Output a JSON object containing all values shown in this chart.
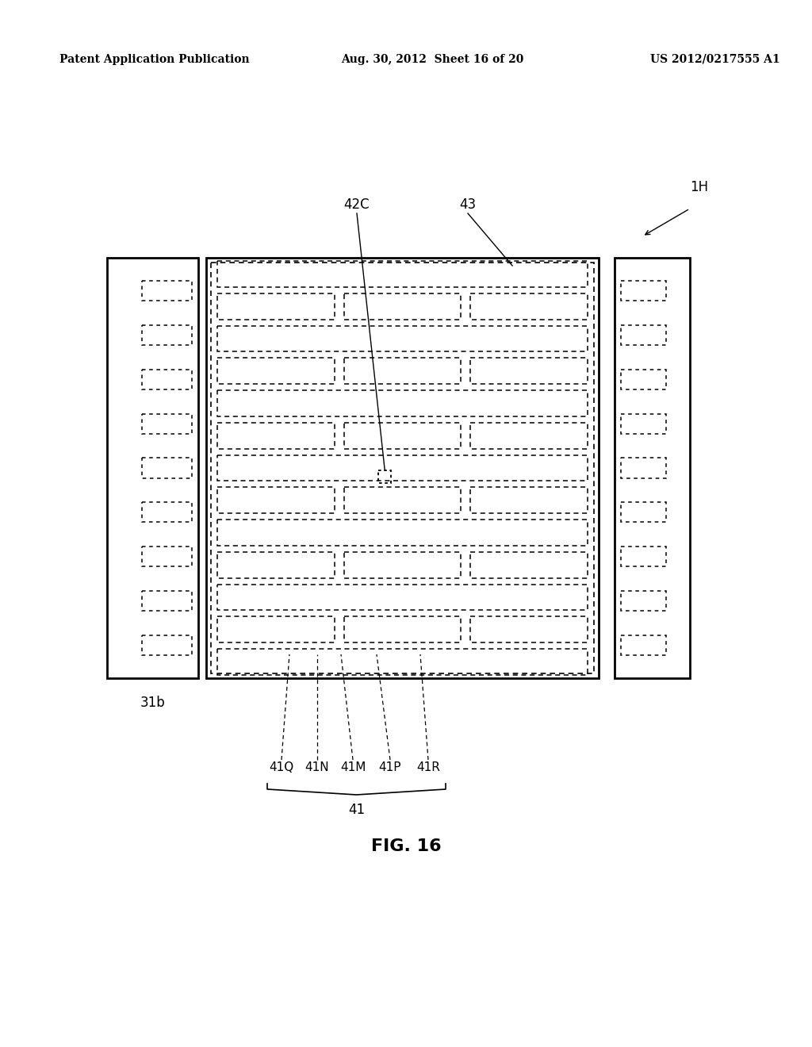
{
  "bg_color": "#ffffff",
  "header_left": "Patent Application Publication",
  "header_mid": "Aug. 30, 2012  Sheet 16 of 20",
  "header_right": "US 2012/0217555 A1",
  "fig_caption": "FIG. 16",
  "label_1H": "1H",
  "label_42C": "42C",
  "label_43": "43",
  "label_31b": "31b",
  "label_41": "41",
  "label_41Q": "41Q",
  "label_41N": "41N",
  "label_41M": "41M",
  "label_41P": "41P",
  "label_41R": "41R"
}
